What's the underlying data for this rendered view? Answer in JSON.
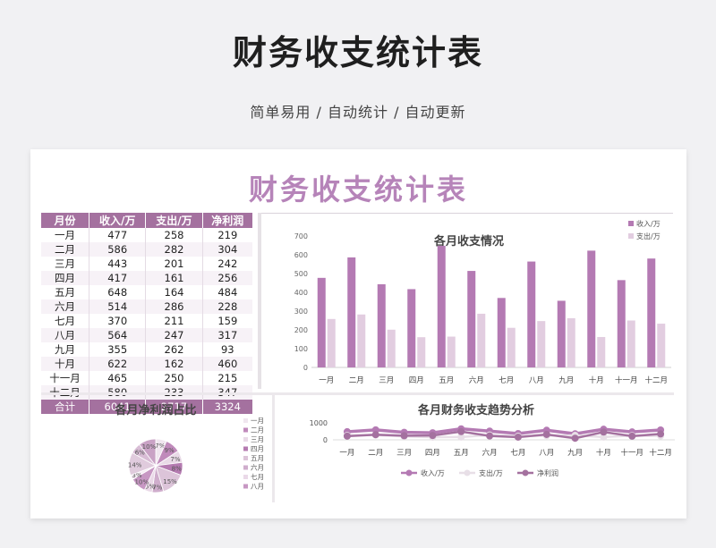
{
  "header": {
    "title": "财务收支统计表",
    "subtitle": "简单易用 / 自动统计 / 自动更新"
  },
  "card": {
    "title": "财务收支统计表"
  },
  "table": {
    "headers": [
      "月份",
      "收入/万",
      "支出/万",
      "净利润"
    ],
    "rows": [
      [
        "一月",
        "477",
        "258",
        "219"
      ],
      [
        "二月",
        "586",
        "282",
        "304"
      ],
      [
        "三月",
        "443",
        "201",
        "242"
      ],
      [
        "四月",
        "417",
        "161",
        "256"
      ],
      [
        "五月",
        "648",
        "164",
        "484"
      ],
      [
        "六月",
        "514",
        "286",
        "228"
      ],
      [
        "七月",
        "370",
        "211",
        "159"
      ],
      [
        "八月",
        "564",
        "247",
        "317"
      ],
      [
        "九月",
        "355",
        "262",
        "93"
      ],
      [
        "十月",
        "622",
        "162",
        "460"
      ],
      [
        "十一月",
        "465",
        "250",
        "215"
      ],
      [
        "十二月",
        "580",
        "233",
        "347"
      ]
    ],
    "total": [
      "合计",
      "6041",
      "2717",
      "3324"
    ]
  },
  "colors": {
    "income": "#b47ab3",
    "expense": "#e2cde0",
    "profit": "#a4719f",
    "title": "#b684b9"
  },
  "chart_data": [
    {
      "type": "bar",
      "title": "各月收支情况",
      "categories": [
        "一月",
        "二月",
        "三月",
        "四月",
        "五月",
        "六月",
        "七月",
        "八月",
        "九月",
        "十月",
        "十一月",
        "十二月"
      ],
      "series": [
        {
          "name": "收入/万",
          "values": [
            477,
            586,
            443,
            417,
            648,
            514,
            370,
            564,
            355,
            622,
            465,
            580
          ]
        },
        {
          "name": "支出/万",
          "values": [
            258,
            282,
            201,
            161,
            164,
            286,
            211,
            247,
            262,
            162,
            250,
            233
          ]
        }
      ],
      "ylim": [
        0,
        700
      ],
      "yticks": [
        "700",
        "600",
        "500",
        "400",
        "300",
        "200",
        "100",
        "0"
      ],
      "legend": "top-right"
    },
    {
      "type": "pie",
      "title": "各月净利润占比",
      "categories": [
        "一月",
        "二月",
        "三月",
        "四月",
        "五月",
        "六月",
        "七月",
        "八月",
        "九月",
        "十月",
        "十一月",
        "十二月"
      ],
      "values": [
        219,
        304,
        242,
        256,
        484,
        228,
        159,
        317,
        93,
        460,
        215,
        347
      ],
      "visible_labels": [
        "7%",
        "9%",
        "7%",
        "8%",
        "15%",
        "7%",
        "5%",
        "10%",
        "3%",
        "14%",
        "6%",
        "10%"
      ],
      "legend_entries": [
        "一月",
        "二月",
        "三月",
        "四月",
        "五月",
        "六月",
        "七月",
        "八月"
      ],
      "legend": "right"
    },
    {
      "type": "line",
      "title": "各月财务收支趋势分析",
      "categories": [
        "一月",
        "二月",
        "三月",
        "四月",
        "五月",
        "六月",
        "七月",
        "八月",
        "九月",
        "十月",
        "十一月",
        "十二月"
      ],
      "series": [
        {
          "name": "收入/万",
          "values": [
            477,
            586,
            443,
            417,
            648,
            514,
            370,
            564,
            355,
            622,
            465,
            580
          ]
        },
        {
          "name": "支出/万",
          "values": [
            258,
            282,
            201,
            161,
            164,
            286,
            211,
            247,
            262,
            162,
            250,
            233
          ]
        },
        {
          "name": "净利润",
          "values": [
            219,
            304,
            242,
            256,
            484,
            228,
            159,
            317,
            93,
            460,
            215,
            347
          ]
        }
      ],
      "yticks": [
        "1000",
        "0"
      ],
      "legend": "bottom"
    }
  ]
}
